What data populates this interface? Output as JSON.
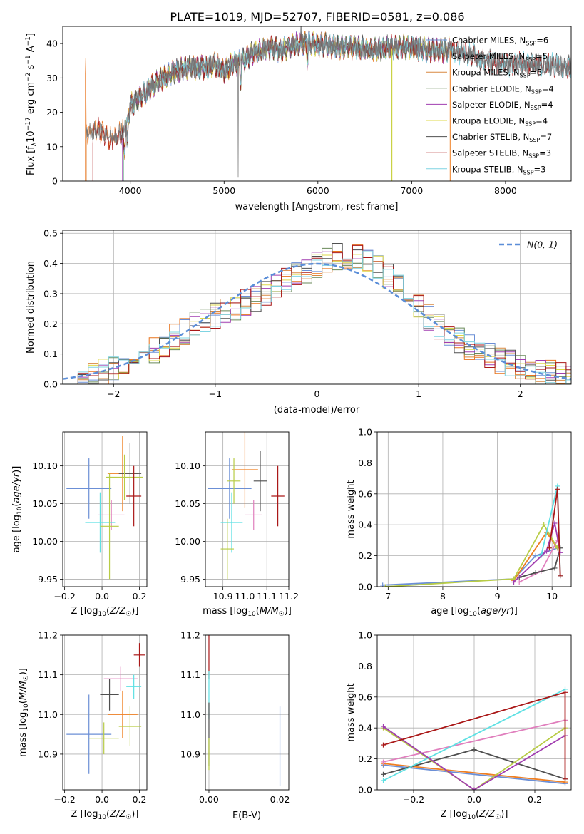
{
  "figure_title": "PLATE=1019, MJD=52707, FIBERID=0581, z=0.086",
  "colors": {
    "series": [
      "#6b8fd6",
      "#ef7f22",
      "#e07fbd",
      "#4f4f4f",
      "#b8cc45",
      "#5ee0e3"
    ],
    "series_alt": [
      "#6b8fd6",
      "#e8731c",
      "#d98840",
      "#6a8a5a",
      "#a13db0",
      "#dfd94a",
      "#505050",
      "#aa1818",
      "#7fd4e2"
    ],
    "gaussian": "#5b8ed8"
  },
  "chart_data": [
    {
      "id": "spectrum",
      "type": "line",
      "xlabel": "wavelength [Angstrom, rest frame]",
      "ylabel": "Flux [f$_\\lambda$10$^{-17}$ erg cm$^{-2}$ s$^{-1}$ A$^{-1}$]",
      "xlim": [
        3280,
        8700
      ],
      "ylim": [
        0,
        45
      ],
      "xticks": [
        "4000",
        "5000",
        "6000",
        "7000",
        "8000"
      ],
      "yticks": [
        "0",
        "10",
        "20",
        "30",
        "40"
      ],
      "legend": [
        {
          "label": "Chabrier MILES, N_SSP=6",
          "base": "Chabrier MILES, N",
          "sub": "SSP",
          "tail": "=6"
        },
        {
          "label": "Salpeter MILES, N_SSP=5",
          "base": "Salpeter MILES, N",
          "sub": "SSP",
          "tail": "=5"
        },
        {
          "label": "Kroupa MILES, N_SSP=5",
          "base": "Kroupa MILES, N",
          "sub": "SSP",
          "tail": "=5"
        },
        {
          "label": "Chabrier ELODIE, N_SSP=4",
          "base": "Chabrier ELODIE, N",
          "sub": "SSP",
          "tail": "=4"
        },
        {
          "label": "Salpeter ELODIE, N_SSP=4",
          "base": "Salpeter ELODIE, N",
          "sub": "SSP",
          "tail": "=4"
        },
        {
          "label": "Kroupa ELODIE, N_SSP=4",
          "base": "Kroupa ELODIE, N",
          "sub": "SSP",
          "tail": "=4"
        },
        {
          "label": "Chabrier STELIB, N_SSP=7",
          "base": "Chabrier STELIB, N",
          "sub": "SSP",
          "tail": "=7"
        },
        {
          "label": "Salpeter STELIB, N_SSP=3",
          "base": "Salpeter STELIB, N",
          "sub": "SSP",
          "tail": "=3"
        },
        {
          "label": "Kroupa STELIB, N_SSP=3",
          "base": "Kroupa STELIB, N",
          "sub": "SSP",
          "tail": "=3"
        }
      ],
      "legend_loc": "right",
      "grid": false,
      "observed_flux": {
        "x": [
          3530,
          3650,
          3800,
          3900,
          3960,
          4000,
          4100,
          4200,
          4400,
          4600,
          4800,
          4900,
          5000,
          5100,
          5200,
          5300,
          5400,
          5500,
          5600,
          5800,
          6000,
          6200,
          6400,
          6600,
          6800,
          7000,
          7200,
          7400,
          7600,
          7800,
          8000,
          8200,
          8400,
          8700
        ],
        "y": [
          14,
          15,
          12,
          14,
          16,
          22,
          24,
          27,
          31,
          33,
          33,
          34,
          32,
          34,
          35,
          37,
          38,
          39,
          38,
          40,
          40,
          39,
          39,
          38,
          39,
          39,
          38,
          38,
          37,
          35,
          34,
          34,
          34,
          33
        ]
      }
    },
    {
      "id": "residuals",
      "type": "step-histogram",
      "xlabel": "(data-model)/error",
      "ylabel": "Normed distribution",
      "xlim": [
        -2.5,
        2.5
      ],
      "ylim": [
        0,
        0.51
      ],
      "xticks": [
        "−2",
        "−1",
        "0",
        "1",
        "2"
      ],
      "yticks": [
        "0.0",
        "0.1",
        "0.2",
        "0.3",
        "0.4",
        "0.5"
      ],
      "legend": "N(0, 1)",
      "legend_loc": "upper right",
      "grid": true,
      "bin_width": 0.1,
      "gaussian": {
        "mean": 0,
        "sigma": 1
      }
    },
    {
      "id": "age-vs-Z",
      "type": "errorbar",
      "xlabel": "Z [log10(Z/Z☉)]",
      "ylabel": "age  [log10(age/yr)]",
      "xlim": [
        -0.21,
        0.24
      ],
      "ylim": [
        9.94,
        10.145
      ],
      "xticks": [
        "−0.2",
        "0.0",
        "0.2"
      ],
      "yticks": [
        "9.95",
        "10.00",
        "10.05",
        "10.10"
      ],
      "grid": true,
      "points": [
        {
          "x": -0.07,
          "xerr": 0.12,
          "y": 10.07,
          "yerr": 0.04
        },
        {
          "x": 0.11,
          "xerr": 0.08,
          "y": 10.09,
          "yerr": 0.05
        },
        {
          "x": 0.05,
          "xerr": 0.07,
          "y": 10.035,
          "yerr": 0.02
        },
        {
          "x": 0.15,
          "xerr": 0.06,
          "y": 10.09,
          "yerr": 0.04
        },
        {
          "x": 0.12,
          "xerr": 0.1,
          "y": 10.085,
          "yerr": 0.03
        },
        {
          "x": -0.01,
          "xerr": 0.08,
          "y": 10.025,
          "yerr": 0.04
        },
        {
          "x": 0.04,
          "xerr": 0.05,
          "y": 10.02,
          "yerr": 0.07
        },
        {
          "x": 0.17,
          "xerr": 0.04,
          "y": 10.06,
          "yerr": 0.04
        }
      ]
    },
    {
      "id": "age-vs-mass",
      "type": "errorbar",
      "xlabel": "mass [log10(M/M☉)]",
      "ylabel": "",
      "xlim": [
        10.82,
        11.2
      ],
      "ylim": [
        9.94,
        10.145
      ],
      "xticks": [
        "10.9",
        "11.0",
        "11.1",
        "11.2"
      ],
      "yticks": [
        "9.95",
        "10.00",
        "10.05",
        "10.10"
      ],
      "grid": true,
      "points": [
        {
          "x": 10.93,
          "xerr": 0.1,
          "y": 10.07,
          "yerr": 0.04
        },
        {
          "x": 11.0,
          "xerr": 0.06,
          "y": 10.095,
          "yerr": 0.05
        },
        {
          "x": 11.04,
          "xerr": 0.04,
          "y": 10.035,
          "yerr": 0.02
        },
        {
          "x": 11.07,
          "xerr": 0.03,
          "y": 10.08,
          "yerr": 0.04
        },
        {
          "x": 10.95,
          "xerr": 0.03,
          "y": 10.08,
          "yerr": 0.03
        },
        {
          "x": 10.94,
          "xerr": 0.05,
          "y": 10.025,
          "yerr": 0.04
        },
        {
          "x": 10.92,
          "xerr": 0.03,
          "y": 9.99,
          "yerr": 0.04
        },
        {
          "x": 11.15,
          "xerr": 0.03,
          "y": 10.06,
          "yerr": 0.04
        }
      ]
    },
    {
      "id": "weight-vs-age",
      "type": "line",
      "xlabel": "age  [log10(age/yr)]",
      "ylabel": "mass weight",
      "xlim": [
        6.8,
        10.35
      ],
      "ylim": [
        0,
        1.0
      ],
      "xticks": [
        "7",
        "8",
        "9",
        "10"
      ],
      "yticks": [
        "0.0",
        "0.2",
        "0.4",
        "0.6",
        "0.8",
        "1.0"
      ],
      "grid": true,
      "series": [
        {
          "x": [
            6.9,
            9.3,
            9.7,
            10.1
          ],
          "y": [
            0.01,
            0.05,
            0.2,
            0.25
          ]
        },
        {
          "x": [
            9.3,
            9.9,
            10.1
          ],
          "y": [
            0.04,
            0.35,
            0.25
          ]
        },
        {
          "x": [
            9.4,
            9.8,
            10.1
          ],
          "y": [
            0.03,
            0.1,
            0.3
          ]
        },
        {
          "x": [
            9.4,
            9.7,
            10.05,
            10.15
          ],
          "y": [
            0.06,
            0.09,
            0.12,
            0.25
          ]
        },
        {
          "x": [
            6.95,
            9.3,
            9.85,
            10.1
          ],
          "y": [
            0.0,
            0.05,
            0.4,
            0.25
          ]
        },
        {
          "x": [
            9.8,
            10.1,
            10.15
          ],
          "y": [
            0.2,
            0.65,
            0.07
          ]
        },
        {
          "x": [
            9.3,
            9.9,
            10.05,
            10.15
          ],
          "y": [
            0.03,
            0.23,
            0.41,
            0.22
          ]
        },
        {
          "x": [
            9.95,
            10.1,
            10.15
          ],
          "y": [
            0.25,
            0.63,
            0.07
          ]
        }
      ]
    },
    {
      "id": "mass-vs-Z",
      "type": "errorbar",
      "xlabel": "Z [log10(Z/Z☉)]",
      "ylabel": "mass [log10(M/M☉)]",
      "xlim": [
        -0.21,
        0.24
      ],
      "ylim": [
        10.81,
        11.2
      ],
      "xticks": [
        "−0.2",
        "0.0",
        "0.2"
      ],
      "yticks": [
        "10.9",
        "11.0",
        "11.1",
        "11.2"
      ],
      "grid": true,
      "points": [
        {
          "x": -0.07,
          "xerr": 0.12,
          "y": 10.95,
          "yerr": 0.1
        },
        {
          "x": 0.11,
          "xerr": 0.08,
          "y": 11.0,
          "yerr": 0.06
        },
        {
          "x": 0.1,
          "xerr": 0.09,
          "y": 11.09,
          "yerr": 0.03
        },
        {
          "x": 0.04,
          "xerr": 0.05,
          "y": 11.05,
          "yerr": 0.04
        },
        {
          "x": 0.15,
          "xerr": 0.06,
          "y": 10.97,
          "yerr": 0.05
        },
        {
          "x": 0.17,
          "xerr": 0.04,
          "y": 11.07,
          "yerr": 0.03
        },
        {
          "x": 0.01,
          "xerr": 0.08,
          "y": 10.94,
          "yerr": 0.04
        },
        {
          "x": 0.2,
          "xerr": 0.03,
          "y": 11.15,
          "yerr": 0.03
        }
      ]
    },
    {
      "id": "mass-vs-ebv",
      "type": "errorbar",
      "xlabel": "E(B-V)",
      "ylabel": "",
      "xlim": [
        -0.001,
        0.0225
      ],
      "ylim": [
        10.81,
        11.2
      ],
      "xticks": [
        "0.00",
        "0.02"
      ],
      "yticks": [
        "10.9",
        "11.0",
        "11.1",
        "11.2"
      ],
      "grid": true,
      "points": [
        {
          "x": 0.0,
          "xerr": 0,
          "y": 11.15,
          "yerr": 0.06
        },
        {
          "x": 0.0,
          "xerr": 0,
          "y": 11.05,
          "yerr": 0.06
        },
        {
          "x": 0.0,
          "xerr": 0,
          "y": 10.95,
          "yerr": 0.08
        },
        {
          "x": 0.0,
          "xerr": 0,
          "y": 10.9,
          "yerr": 0.04
        },
        {
          "x": 0.02,
          "xerr": 0,
          "y": 10.92,
          "yerr": 0.1
        }
      ]
    },
    {
      "id": "weight-vs-Z",
      "type": "line",
      "xlabel": "Z [log10(Z/Z☉)]",
      "ylabel": "mass weight",
      "xlim": [
        -0.32,
        0.32
      ],
      "ylim": [
        0,
        1.0
      ],
      "xticks": [
        "−0.2",
        "0.0",
        "0.2"
      ],
      "yticks": [
        "0.0",
        "0.2",
        "0.4",
        "0.6",
        "0.8",
        "1.0"
      ],
      "grid": true,
      "series": [
        {
          "x": [
            -0.3,
            0.3
          ],
          "y": [
            0.16,
            0.04
          ]
        },
        {
          "x": [
            -0.3,
            0.3
          ],
          "y": [
            0.17,
            0.05
          ]
        },
        {
          "x": [
            -0.3,
            0.3
          ],
          "y": [
            0.18,
            0.45
          ]
        },
        {
          "x": [
            -0.3,
            0.0,
            0.3
          ],
          "y": [
            0.1,
            0.26,
            0.07
          ]
        },
        {
          "x": [
            -0.3,
            0.0,
            0.3
          ],
          "y": [
            0.4,
            0.0,
            0.4
          ]
        },
        {
          "x": [
            -0.3,
            0.3
          ],
          "y": [
            0.06,
            0.65
          ]
        },
        {
          "x": [
            -0.3,
            0.0,
            0.3
          ],
          "y": [
            0.41,
            0.0,
            0.35
          ]
        },
        {
          "x": [
            -0.3,
            0.3,
            0.3
          ],
          "y": [
            0.29,
            0.63,
            0.07
          ]
        }
      ]
    }
  ]
}
